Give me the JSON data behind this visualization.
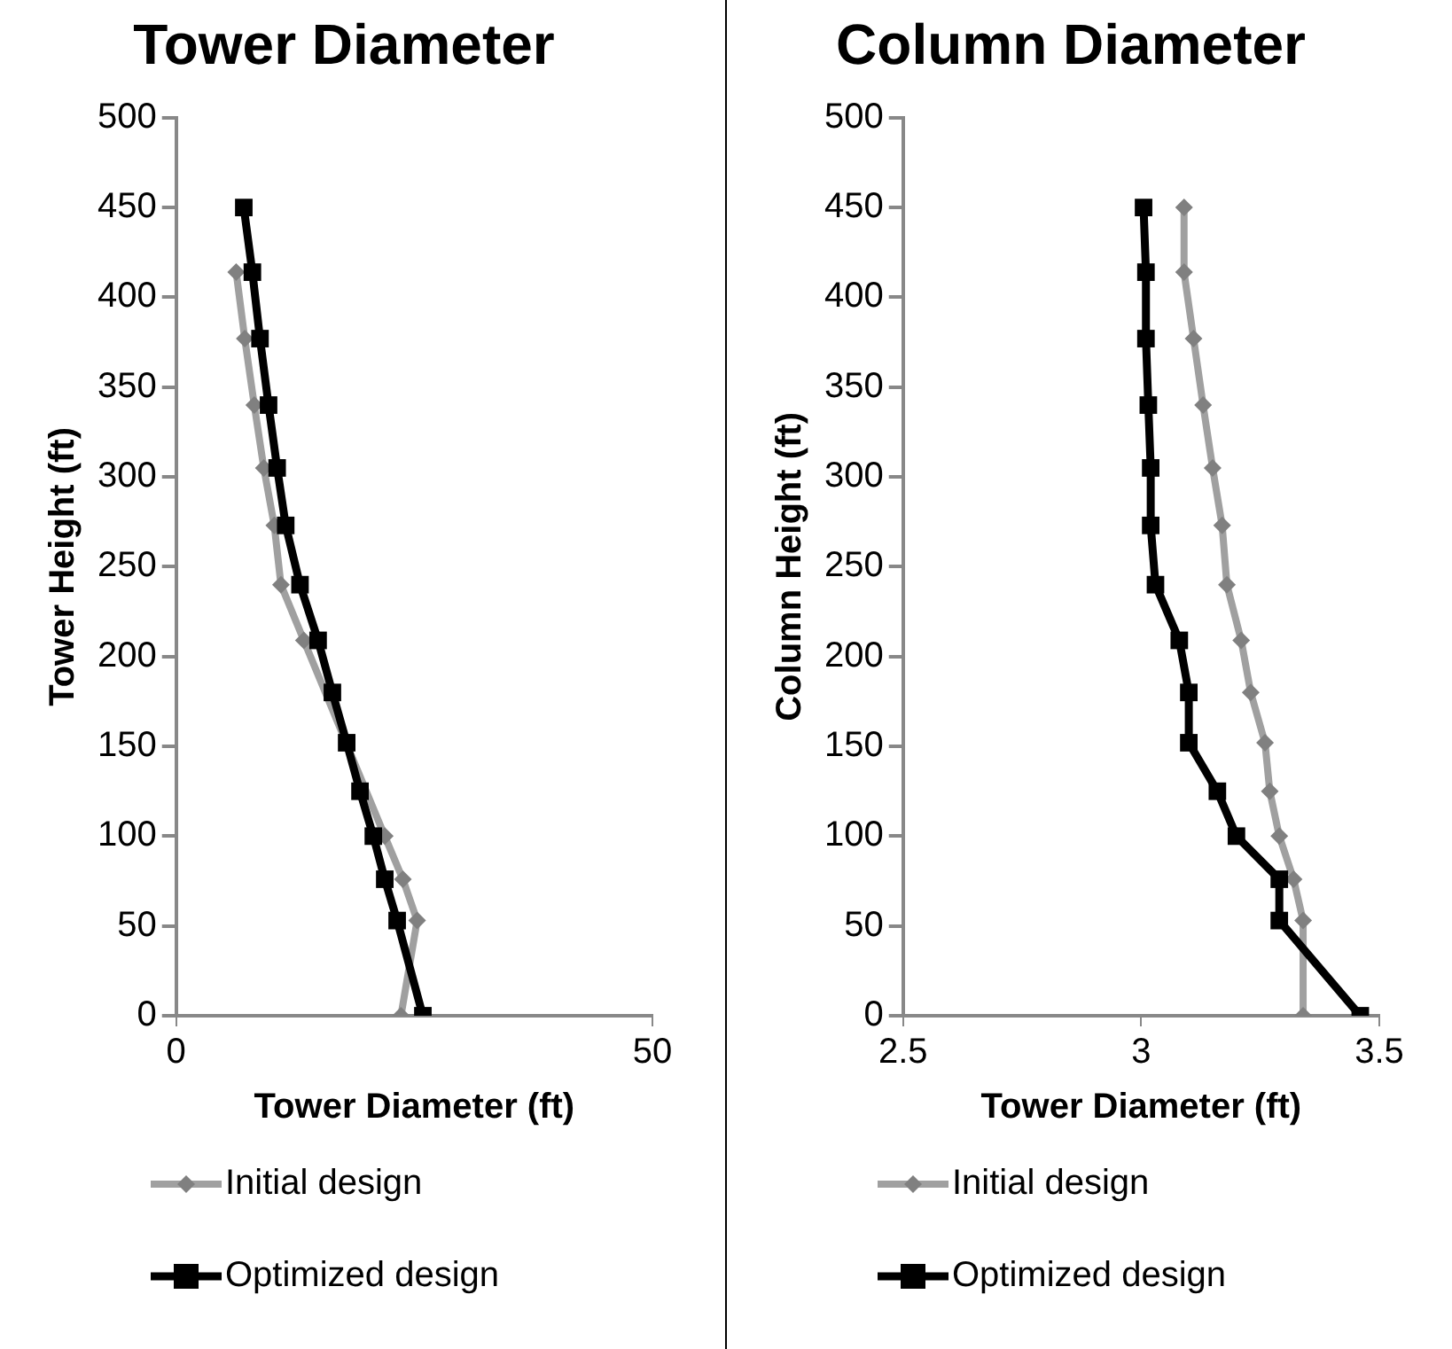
{
  "chart_data": [
    {
      "type": "line",
      "title": "Tower Diameter",
      "xlabel": "Tower Diameter (ft)",
      "ylabel": "Tower Height (ft)",
      "xlim": [
        0,
        50
      ],
      "xticks": [
        0,
        50
      ],
      "ylim": [
        0,
        500
      ],
      "yticks": [
        0,
        50,
        100,
        150,
        200,
        250,
        300,
        350,
        400,
        450,
        500
      ],
      "grid": false,
      "legend": "bottom",
      "series": [
        {
          "name": "Initial design",
          "color": "#a0a0a0",
          "marker": "diamond",
          "x": [
            23.6,
            25.3,
            23.8,
            21.9,
            13.4,
            11.0,
            10.3,
            9.2,
            8.2,
            7.2,
            6.3
          ],
          "values": [
            0,
            53,
            76,
            100,
            209,
            240,
            273,
            305,
            340,
            377,
            414
          ]
        },
        {
          "name": "Optimized design",
          "color": "#000000",
          "marker": "square",
          "x": [
            25.9,
            23.2,
            21.9,
            20.7,
            19.3,
            17.9,
            16.4,
            14.9,
            13.0,
            11.5,
            10.6,
            9.7,
            8.8,
            8.0,
            7.1
          ],
          "values": [
            0,
            53,
            76,
            100,
            125,
            152,
            180,
            209,
            240,
            273,
            305,
            340,
            377,
            414,
            450
          ]
        }
      ]
    },
    {
      "type": "line",
      "title": "Column Diameter",
      "xlabel": "Tower Diameter (ft)",
      "ylabel": "Column Height (ft)",
      "xlim": [
        2.5,
        3.5
      ],
      "xticks": [
        2.5,
        3,
        3.5
      ],
      "ylim": [
        0,
        500
      ],
      "yticks": [
        0,
        50,
        100,
        150,
        200,
        250,
        300,
        350,
        400,
        450,
        500
      ],
      "grid": false,
      "legend": "bottom",
      "series": [
        {
          "name": "Initial design",
          "color": "#a0a0a0",
          "marker": "diamond",
          "x": [
            3.34,
            3.34,
            3.32,
            3.29,
            3.27,
            3.26,
            3.23,
            3.21,
            3.18,
            3.17,
            3.15,
            3.13,
            3.11,
            3.09,
            3.09
          ],
          "values": [
            0,
            53,
            76,
            100,
            125,
            152,
            180,
            209,
            240,
            273,
            305,
            340,
            377,
            414,
            450
          ]
        },
        {
          "name": "Optimized design",
          "color": "#000000",
          "marker": "square",
          "x": [
            3.46,
            3.29,
            3.29,
            3.2,
            3.16,
            3.1,
            3.1,
            3.08,
            3.03,
            3.02,
            3.02,
            3.015,
            3.01,
            3.01,
            3.005
          ],
          "values": [
            0,
            53,
            76,
            100,
            125,
            152,
            180,
            209,
            240,
            273,
            305,
            340,
            377,
            414,
            450
          ]
        }
      ]
    }
  ]
}
